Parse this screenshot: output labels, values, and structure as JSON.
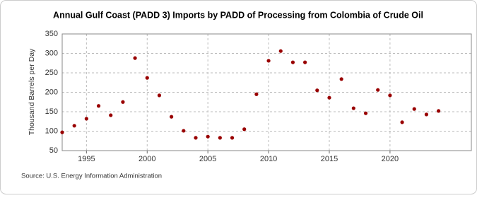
{
  "chart_data": {
    "type": "scatter",
    "title": "Annual Gulf Coast (PADD 3) Imports by PADD of Processing from Colombia of Crude Oil",
    "y_label": "Thousand Barrels per Day",
    "source": "Source: U.S. Energy Information Administration",
    "x": [
      1993,
      1994,
      1995,
      1996,
      1997,
      1998,
      1999,
      2000,
      2001,
      2002,
      2003,
      2004,
      2005,
      2006,
      2007,
      2008,
      2009,
      2010,
      2011,
      2012,
      2013,
      2014,
      2015,
      2016,
      2017,
      2018,
      2019,
      2020,
      2021,
      2022,
      2023,
      2024
    ],
    "series": [
      {
        "name": "Colombia",
        "color": "#990000",
        "values": [
          97,
          114,
          132,
          165,
          141,
          175,
          288,
          237,
          192,
          137,
          101,
          83,
          86,
          83,
          83,
          105,
          195,
          281,
          306,
          277,
          277,
          205,
          186,
          234,
          159,
          146,
          206,
          192,
          123,
          157,
          143,
          152
        ]
      }
    ],
    "xlim": [
      1993,
      2026.7
    ],
    "xticks": [
      1995,
      2000,
      2005,
      2010,
      2015,
      2020
    ],
    "ylim": [
      50,
      350
    ],
    "yticks": [
      50,
      100,
      150,
      200,
      250,
      300,
      350
    ],
    "grid": true
  }
}
